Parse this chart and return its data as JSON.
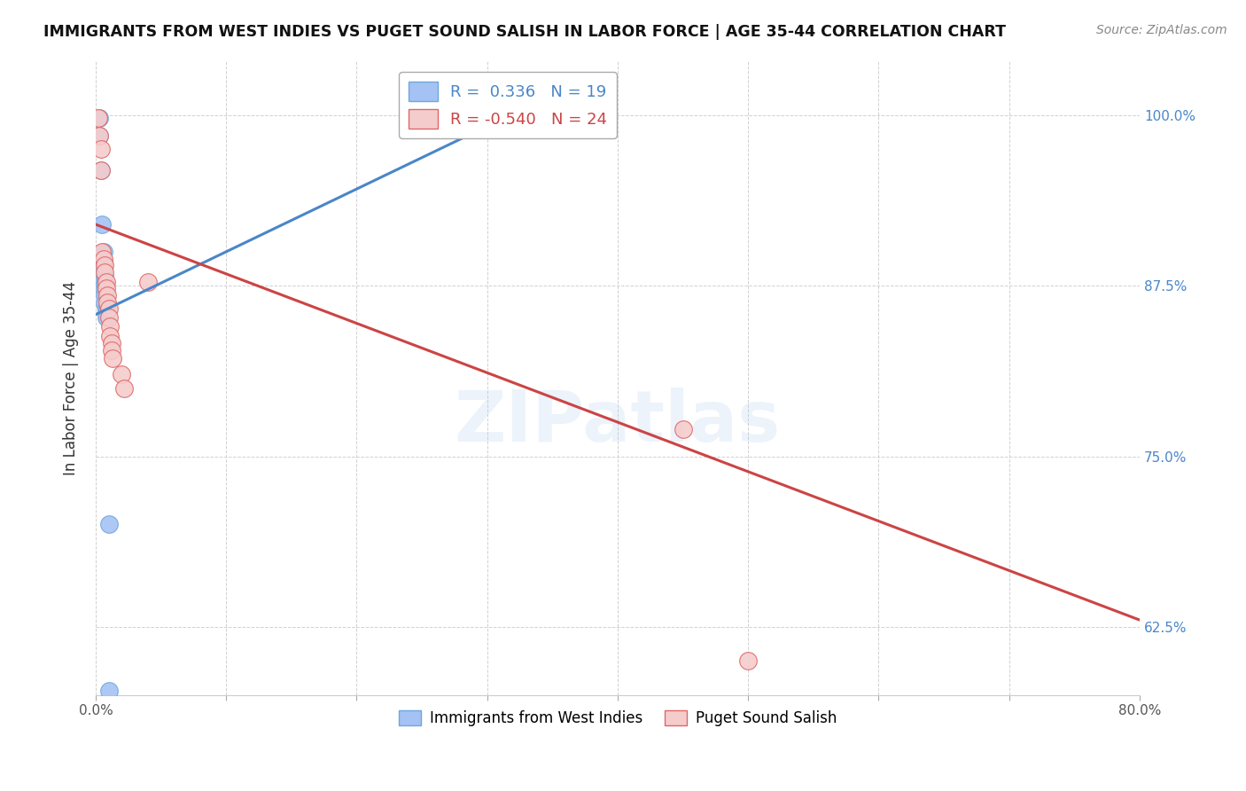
{
  "title": "IMMIGRANTS FROM WEST INDIES VS PUGET SOUND SALISH IN LABOR FORCE | AGE 35-44 CORRELATION CHART",
  "source": "Source: ZipAtlas.com",
  "ylabel": "In Labor Force | Age 35-44",
  "xlim": [
    0.0,
    0.8
  ],
  "ylim": [
    0.575,
    1.04
  ],
  "xtick_positions": [
    0.0,
    0.1,
    0.2,
    0.3,
    0.4,
    0.5,
    0.6,
    0.7,
    0.8
  ],
  "ytick_positions": [
    0.625,
    0.75,
    0.875,
    1.0
  ],
  "ytick_labels": [
    "62.5%",
    "75.0%",
    "87.5%",
    "100.0%"
  ],
  "blue_color": "#a4c2f4",
  "pink_color": "#f4cccc",
  "blue_edge_color": "#6fa8dc",
  "pink_edge_color": "#e06666",
  "blue_line_color": "#4a86c8",
  "pink_line_color": "#cc4444",
  "right_tick_color": "#4a86c8",
  "R_blue": 0.336,
  "N_blue": 19,
  "R_pink": -0.54,
  "N_pink": 24,
  "legend_label_blue": "Immigrants from West Indies",
  "legend_label_pink": "Puget Sound Salish",
  "watermark": "ZIPatlas",
  "blue_scatter": [
    [
      0.003,
      0.998
    ],
    [
      0.003,
      0.985
    ],
    [
      0.004,
      0.96
    ],
    [
      0.005,
      0.92
    ],
    [
      0.006,
      0.9
    ],
    [
      0.006,
      0.893
    ],
    [
      0.006,
      0.888
    ],
    [
      0.007,
      0.882
    ],
    [
      0.007,
      0.878
    ],
    [
      0.007,
      0.876
    ],
    [
      0.007,
      0.872
    ],
    [
      0.007,
      0.868
    ],
    [
      0.007,
      0.862
    ],
    [
      0.008,
      0.858
    ],
    [
      0.008,
      0.855
    ],
    [
      0.008,
      0.852
    ],
    [
      0.01,
      0.7
    ],
    [
      0.295,
      1.002
    ],
    [
      0.01,
      0.578
    ]
  ],
  "pink_scatter": [
    [
      0.002,
      0.998
    ],
    [
      0.003,
      0.985
    ],
    [
      0.004,
      0.975
    ],
    [
      0.004,
      0.96
    ],
    [
      0.005,
      0.9
    ],
    [
      0.006,
      0.895
    ],
    [
      0.007,
      0.89
    ],
    [
      0.007,
      0.885
    ],
    [
      0.008,
      0.878
    ],
    [
      0.008,
      0.873
    ],
    [
      0.009,
      0.868
    ],
    [
      0.009,
      0.863
    ],
    [
      0.01,
      0.858
    ],
    [
      0.01,
      0.852
    ],
    [
      0.011,
      0.845
    ],
    [
      0.011,
      0.838
    ],
    [
      0.012,
      0.833
    ],
    [
      0.012,
      0.828
    ],
    [
      0.013,
      0.822
    ],
    [
      0.02,
      0.81
    ],
    [
      0.022,
      0.8
    ],
    [
      0.04,
      0.878
    ],
    [
      0.45,
      0.77
    ],
    [
      0.5,
      0.6
    ]
  ],
  "blue_trend_x": [
    0.0,
    0.35
  ],
  "blue_trend_y": [
    0.854,
    1.015
  ],
  "pink_trend_x": [
    0.0,
    0.8
  ],
  "pink_trend_y": [
    0.92,
    0.63
  ],
  "grid_color": "#cccccc",
  "background_color": "#ffffff"
}
